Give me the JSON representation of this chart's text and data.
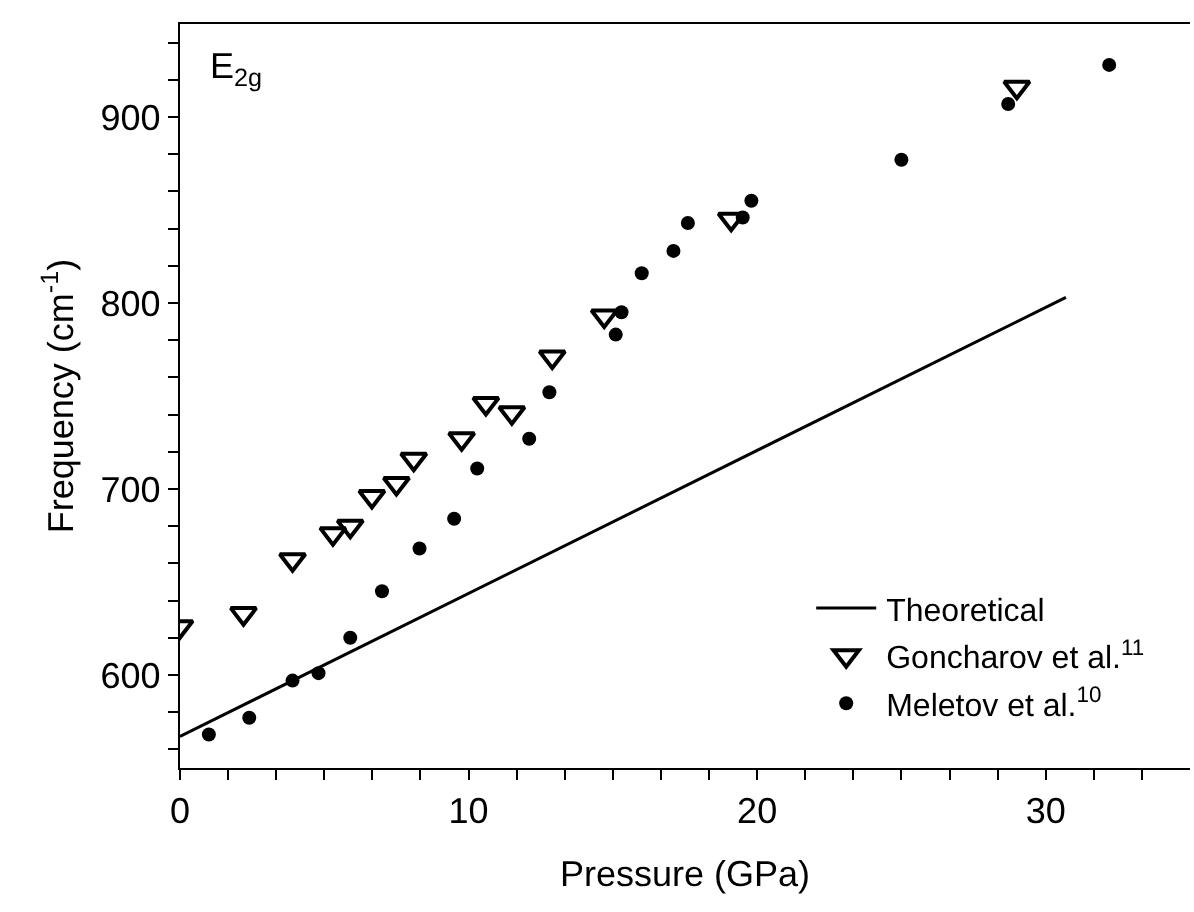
{
  "chart_data": {
    "type": "scatter",
    "xlabel": "Pressure (GPa)",
    "ylabel": "Frequency (cm$^{-1}$)",
    "annotations": [
      "E$_{2g}$"
    ],
    "xlim": [
      0,
      35
    ],
    "ylim": [
      550,
      950
    ],
    "xticks": [
      0,
      {
        "value": 1.667,
        "label": null
      },
      {
        "value": 3.333,
        "label": null
      },
      {
        "value": 5,
        "label": null
      },
      {
        "value": 6.667,
        "label": null
      },
      {
        "value": 8.333,
        "label": null
      },
      10,
      {
        "value": 11.667,
        "label": null
      },
      {
        "value": 13.333,
        "label": null
      },
      {
        "value": 15,
        "label": null
      },
      {
        "value": 16.667,
        "label": null
      },
      {
        "value": 18.333,
        "label": null
      },
      20,
      {
        "value": 21.667,
        "label": null
      },
      {
        "value": 23.333,
        "label": null
      },
      {
        "value": 25,
        "label": null
      },
      {
        "value": 26.667,
        "label": null
      },
      {
        "value": 28.333,
        "label": null
      },
      30,
      {
        "value": 31.667,
        "label": null
      },
      {
        "value": 33.333,
        "label": null
      }
    ],
    "yticks": [
      {
        "value": 560,
        "label": null
      },
      {
        "value": 580,
        "label": null
      },
      600,
      {
        "value": 620,
        "label": null
      },
      {
        "value": 640,
        "label": null
      },
      {
        "value": 660,
        "label": null
      },
      {
        "value": 680,
        "label": null
      },
      700,
      {
        "value": 720,
        "label": null
      },
      {
        "value": 740,
        "label": null
      },
      {
        "value": 760,
        "label": null
      },
      {
        "value": 780,
        "label": null
      },
      800,
      {
        "value": 820,
        "label": null
      },
      {
        "value": 840,
        "label": null
      },
      {
        "value": 860,
        "label": null
      },
      {
        "value": 880,
        "label": null
      },
      900,
      {
        "value": 920,
        "label": null
      },
      {
        "value": 940,
        "label": null
      }
    ],
    "legend": "bottom right",
    "series": [
      {
        "name": "Theoretical",
        "type": "line",
        "color": "#000000",
        "marker": "none",
        "line_style": "solid",
        "x": [
          0,
          30.7
        ],
        "values": [
          567,
          803
        ]
      },
      {
        "name": "Goncharov et al.$^{11}$",
        "color": "#000000",
        "marker": "triangle",
        "x": [
          0,
          2.2,
          3.9,
          5.3,
          5.9,
          6.65,
          7.5,
          8.1,
          9.76,
          10.6,
          11.5,
          12.9,
          14.7,
          19.1,
          29.0
        ],
        "values": [
          626,
          633,
          662,
          676,
          680,
          696,
          703,
          716,
          727,
          746,
          741,
          771,
          793,
          845,
          916
        ]
      },
      {
        "name": "Meletov et al.$^{10}$",
        "color": "#000000",
        "marker": "circle",
        "x": [
          1.0,
          2.4,
          3.9,
          4.8,
          5.9,
          7.0,
          8.3,
          9.5,
          10.3,
          12.1,
          12.8,
          15.1,
          15.3,
          16.0,
          17.1,
          17.6,
          19.5,
          19.8,
          25.0,
          28.7,
          32.2
        ],
        "values": [
          568,
          577,
          597,
          601,
          620,
          645,
          668,
          684,
          711,
          727,
          752,
          783,
          795,
          816,
          828,
          843,
          846,
          855,
          877,
          907,
          928
        ]
      }
    ]
  }
}
